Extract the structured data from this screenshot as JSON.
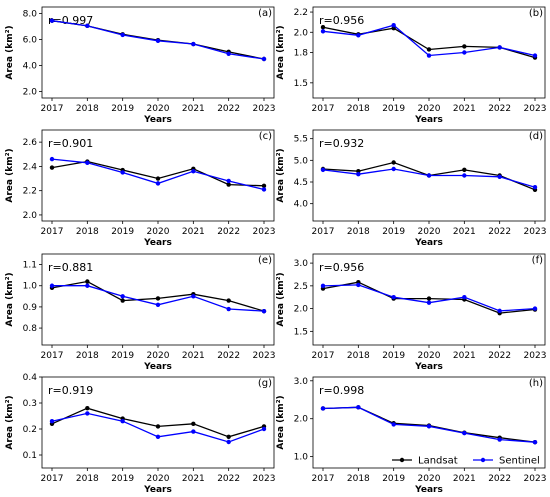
{
  "colors": {
    "landsat": "#000000",
    "sentinel": "#0000ff"
  },
  "chart_data": [
    {
      "type": "line",
      "panel": "(a)",
      "r": "r=0.997",
      "xlabel": "Years",
      "ylabel": "Area (km²)",
      "x": [
        "2017",
        "2018",
        "2019",
        "2020",
        "2021",
        "2022",
        "2023"
      ],
      "ylim": [
        1.5,
        8.5
      ],
      "yticks": [
        "2.0",
        "4.0",
        "6.0",
        "8.0"
      ],
      "ytick_values": [
        2,
        4,
        6,
        8
      ],
      "series": [
        {
          "name": "Landsat",
          "values": [
            7.45,
            7.05,
            6.4,
            5.95,
            5.65,
            5.05,
            4.5
          ]
        },
        {
          "name": "Sentinel",
          "values": [
            7.45,
            7.05,
            6.35,
            5.9,
            5.65,
            4.9,
            4.5
          ]
        }
      ]
    },
    {
      "type": "line",
      "panel": "(b)",
      "r": "r=0.956",
      "xlabel": "Years",
      "ylabel": "Area (km²)",
      "x": [
        "2017",
        "2018",
        "2019",
        "2020",
        "2021",
        "2022",
        "2023"
      ],
      "ylim": [
        1.35,
        2.25
      ],
      "yticks": [
        "1.5",
        "1.8",
        "2.0",
        "2.2"
      ],
      "ytick_values": [
        1.5,
        1.8,
        2.0,
        2.2
      ],
      "series": [
        {
          "name": "Landsat",
          "values": [
            2.05,
            1.98,
            2.04,
            1.83,
            1.86,
            1.85,
            1.75
          ]
        },
        {
          "name": "Sentinel",
          "values": [
            2.01,
            1.97,
            2.07,
            1.77,
            1.8,
            1.85,
            1.77
          ]
        }
      ]
    },
    {
      "type": "line",
      "panel": "(c)",
      "r": "r=0.901",
      "xlabel": "Years",
      "ylabel": "Area (km²)",
      "x": [
        "2017",
        "2018",
        "2019",
        "2020",
        "2021",
        "2022",
        "2023"
      ],
      "ylim": [
        1.95,
        2.7
      ],
      "yticks": [
        "2.0",
        "2.2",
        "2.4",
        "2.6"
      ],
      "ytick_values": [
        2.0,
        2.2,
        2.4,
        2.6
      ],
      "series": [
        {
          "name": "Landsat",
          "values": [
            2.39,
            2.44,
            2.37,
            2.3,
            2.38,
            2.25,
            2.24
          ]
        },
        {
          "name": "Sentinel",
          "values": [
            2.46,
            2.43,
            2.35,
            2.26,
            2.36,
            2.28,
            2.21
          ]
        }
      ]
    },
    {
      "type": "line",
      "panel": "(d)",
      "r": "r=0.932",
      "xlabel": "Years",
      "ylabel": "Area (km²)",
      "x": [
        "2017",
        "2018",
        "2019",
        "2020",
        "2021",
        "2022",
        "2023"
      ],
      "ylim": [
        3.6,
        5.7
      ],
      "yticks": [
        "4.0",
        "4.5",
        "5.0",
        "5.5"
      ],
      "ytick_values": [
        4.0,
        4.5,
        5.0,
        5.5
      ],
      "series": [
        {
          "name": "Landsat",
          "values": [
            4.8,
            4.75,
            4.95,
            4.65,
            4.78,
            4.65,
            4.32
          ]
        },
        {
          "name": "Sentinel",
          "values": [
            4.78,
            4.68,
            4.8,
            4.65,
            4.65,
            4.62,
            4.38
          ]
        }
      ]
    },
    {
      "type": "line",
      "panel": "(e)",
      "r": "r=0.881",
      "xlabel": "Years",
      "ylabel": "Area (km²)",
      "x": [
        "2017",
        "2018",
        "2019",
        "2020",
        "2021",
        "2022",
        "2023"
      ],
      "ylim": [
        0.72,
        1.15
      ],
      "yticks": [
        "0.8",
        "0.9",
        "1.0",
        "1.1"
      ],
      "ytick_values": [
        0.8,
        0.9,
        1.0,
        1.1
      ],
      "series": [
        {
          "name": "Landsat",
          "values": [
            0.99,
            1.02,
            0.93,
            0.94,
            0.96,
            0.93,
            0.88
          ]
        },
        {
          "name": "Sentinel",
          "values": [
            1.0,
            1.0,
            0.95,
            0.91,
            0.95,
            0.89,
            0.88
          ]
        }
      ]
    },
    {
      "type": "line",
      "panel": "(f)",
      "r": "r=0.956",
      "xlabel": "Years",
      "ylabel": "Area (km²)",
      "x": [
        "2017",
        "2018",
        "2019",
        "2020",
        "2021",
        "2022",
        "2023"
      ],
      "ylim": [
        1.2,
        3.2
      ],
      "yticks": [
        "1.5",
        "2.0",
        "2.5",
        "3.0"
      ],
      "ytick_values": [
        1.5,
        2.0,
        2.5,
        3.0
      ],
      "series": [
        {
          "name": "Landsat",
          "values": [
            2.44,
            2.58,
            2.22,
            2.22,
            2.2,
            1.9,
            1.98
          ]
        },
        {
          "name": "Sentinel",
          "values": [
            2.5,
            2.52,
            2.25,
            2.13,
            2.25,
            1.95,
            2.0
          ]
        }
      ]
    },
    {
      "type": "line",
      "panel": "(g)",
      "r": "r=0.919",
      "xlabel": "Years",
      "ylabel": "Area (km²)",
      "x": [
        "2017",
        "2018",
        "2019",
        "2020",
        "2021",
        "2022",
        "2023"
      ],
      "ylim": [
        0.05,
        0.4
      ],
      "yticks": [
        "0.1",
        "0.2",
        "0.3",
        "0.4"
      ],
      "ytick_values": [
        0.1,
        0.2,
        0.3,
        0.4
      ],
      "series": [
        {
          "name": "Landsat",
          "values": [
            0.22,
            0.28,
            0.24,
            0.21,
            0.22,
            0.17,
            0.21
          ]
        },
        {
          "name": "Sentinel",
          "values": [
            0.23,
            0.26,
            0.23,
            0.17,
            0.19,
            0.15,
            0.2
          ]
        }
      ]
    },
    {
      "type": "line",
      "panel": "(h)",
      "r": "r=0.998",
      "xlabel": "Years",
      "ylabel": "Area (km²)",
      "x": [
        "2017",
        "2018",
        "2019",
        "2020",
        "2021",
        "2022",
        "2023"
      ],
      "ylim": [
        0.7,
        3.1
      ],
      "yticks": [
        "1.0",
        "2.0",
        "3.0"
      ],
      "ytick_values": [
        1.0,
        2.0,
        3.0
      ],
      "legend": {
        "placement": "lower-right",
        "entries": [
          "Landsat",
          "Sentinel"
        ]
      },
      "series": [
        {
          "name": "Landsat",
          "values": [
            2.27,
            2.3,
            1.88,
            1.82,
            1.63,
            1.5,
            1.38
          ]
        },
        {
          "name": "Sentinel",
          "values": [
            2.27,
            2.3,
            1.85,
            1.8,
            1.62,
            1.45,
            1.38
          ]
        }
      ]
    }
  ]
}
